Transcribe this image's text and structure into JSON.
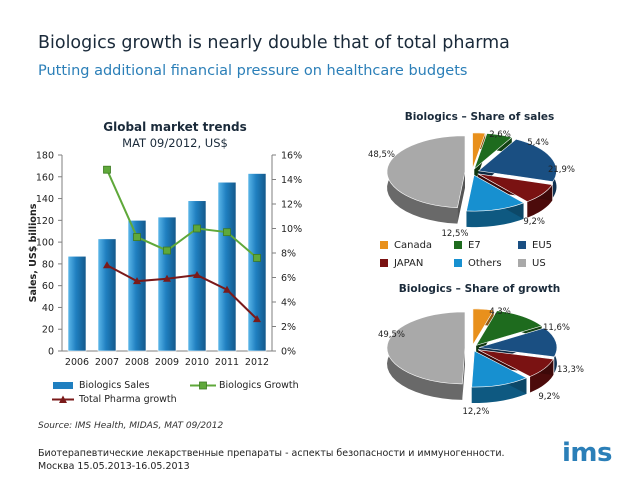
{
  "slide": {
    "title": "Biologics growth is nearly double that of total pharma",
    "subtitle": "Putting additional financial pressure on healthcare budgets",
    "source": "Source: IMS Health, MIDAS, MAT 09/2012",
    "footer_line1": "Биотерапевтические лекарственные препараты - аспекты безопасности и иммуногенности.",
    "footer_line2": "Москва 15.05.2013-16.05.2013",
    "logo": "ims"
  },
  "colors": {
    "bar": "#1f7fc0",
    "bar_light": "#5cb8ea",
    "growth_line": "#5fa83a",
    "pharma_line": "#7a1a1a",
    "canada": "#e8901c",
    "e7": "#1e6b1e",
    "eu5": "#1a4f82",
    "japan": "#7a1212",
    "others": "#1790d0",
    "us": "#a9a9a9"
  },
  "chart_data": [
    {
      "type": "bar",
      "title": "Global market trends",
      "subtitle": "MAT 09/2012, US$",
      "ylabel": "Sales, US$ billions",
      "ylim": [
        0,
        180
      ],
      "yticks": [
        "0",
        "20",
        "40",
        "60",
        "80",
        "100",
        "120",
        "140",
        "160",
        "180"
      ],
      "y2lim": [
        0,
        16
      ],
      "y2ticks": [
        "0%",
        "2%",
        "4%",
        "6%",
        "8%",
        "10%",
        "12%",
        "14%",
        "16%"
      ],
      "categories": [
        "2006",
        "2007",
        "2008",
        "2009",
        "2010",
        "2011",
        "2012"
      ],
      "series": [
        {
          "name": "Biologics Sales",
          "axis": "left",
          "kind": "bar",
          "values": [
            87,
            103,
            120,
            123,
            138,
            155,
            163
          ]
        },
        {
          "name": "Biologics Growth",
          "axis": "right",
          "kind": "line",
          "values": [
            null,
            14.8,
            9.3,
            8.2,
            10.0,
            9.7,
            7.6
          ]
        },
        {
          "name": "Total Pharma growth",
          "axis": "right",
          "kind": "line",
          "values": [
            null,
            7.0,
            5.7,
            5.9,
            6.2,
            5.0,
            2.6
          ]
        }
      ]
    },
    {
      "type": "pie",
      "title": "Biologics – Share of sales",
      "labels": [
        "Canada",
        "E7",
        "EU5",
        "JAPAN",
        "Others",
        "US"
      ],
      "values": [
        2.6,
        5.4,
        21.9,
        9.2,
        12.5,
        48.5
      ],
      "value_labels": [
        "2,6%",
        "5,4%",
        "21,9%",
        "9,2%",
        "12,5%",
        "48,5%"
      ]
    },
    {
      "type": "pie",
      "title": "Biologics – Share of growth",
      "labels": [
        "Canada",
        "E7",
        "EU5",
        "JAPAN",
        "Others",
        "US"
      ],
      "values": [
        4.3,
        11.6,
        13.3,
        9.2,
        12.2,
        49.5
      ],
      "value_labels": [
        "4,3%",
        "11,6%",
        "13,3%",
        "9,2%",
        "12,2%",
        "49,5%"
      ]
    }
  ]
}
